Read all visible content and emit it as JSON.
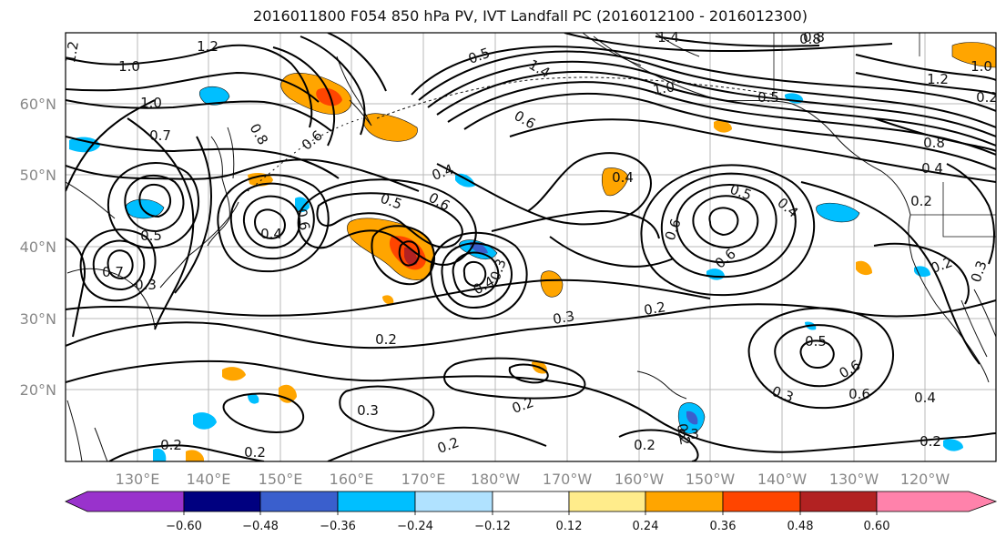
{
  "title": "2016011800 F054 850 hPa PV, IVT Landfall PC (2016012100 - 2016012300)",
  "lat_labels": [
    "60°N",
    "50°N",
    "40°N",
    "30°N",
    "20°N"
  ],
  "lon_labels": [
    "130°E",
    "140°E",
    "150°E",
    "160°E",
    "170°E",
    "180°W",
    "170°W",
    "160°W",
    "150°W",
    "140°W",
    "130°W",
    "120°W"
  ],
  "contour_labels": [
    "1.2",
    "1.0",
    "1.2",
    "1.0",
    "1.4",
    "1.4",
    "1.0",
    "0.8",
    "1.2",
    "1.0",
    "0.5",
    "0.6",
    "0.8",
    "0.7",
    "0.6",
    "0.4",
    "0.6",
    "0.5",
    "0.6",
    "0.4",
    "0.5",
    "0.3",
    "0.7",
    "0.6",
    "0.5",
    "0.4",
    "0.6",
    "0.4",
    "0.3",
    "0.3",
    "0.2",
    "0.2",
    "0.3",
    "0.2",
    "0.5",
    "0.6",
    "0.3",
    "0.4",
    "0.3",
    "0.2",
    "0.2",
    "0.2",
    "0.2",
    "0.2",
    "0.2",
    "0.4",
    "0.8",
    "0.4",
    "0.5",
    "0.8",
    "0.6",
    "0.3",
    "0.2",
    "0.2",
    "0.2"
  ],
  "colorbar": {
    "colors": [
      "#9932cc",
      "#000080",
      "#3a5fcd",
      "#00bfff",
      "#b0e2ff",
      "#ffffff",
      "#ffec8b",
      "#ffa500",
      "#ff4500",
      "#b22222",
      "#ff82ab"
    ],
    "tick_labels": [
      "−0.60",
      "−0.48",
      "−0.36",
      "−0.24",
      "−0.12",
      "0.12",
      "0.24",
      "0.36",
      "0.48",
      "0.60"
    ]
  }
}
